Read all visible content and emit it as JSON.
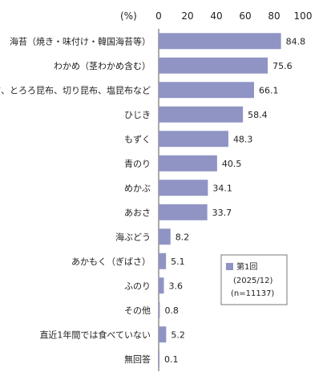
{
  "chart_data": {
    "type": "bar",
    "orientation": "horizontal",
    "unit_label": "(%)",
    "xlim": [
      0,
      100
    ],
    "ticks": [
      "0",
      "20",
      "40",
      "60",
      "80",
      "100"
    ],
    "categories": [
      "海苔（焼き・味付け・韓国海苔等）",
      "わかめ（茎わかめ含む）",
      "昆布、とろろ昆布、切り昆布、塩昆布など",
      "ひじき",
      "もずく",
      "青のり",
      "めかぶ",
      "あおさ",
      "海ぶどう",
      "あかもく（ぎばさ）",
      "ふのり",
      "その他",
      "直近1年間では食べていない",
      "無回答"
    ],
    "series": [
      {
        "name": "第1回",
        "values": [
          84.8,
          75.6,
          66.1,
          58.4,
          48.3,
          40.5,
          34.1,
          33.7,
          8.2,
          5.1,
          3.6,
          0.8,
          5.2,
          0.1
        ],
        "color": "#8f94c4"
      }
    ],
    "legend": {
      "label": "第1回",
      "lines": [
        "(2025/12)",
        "(n=11137)"
      ],
      "placement": "bottom-right"
    },
    "grid": false
  }
}
